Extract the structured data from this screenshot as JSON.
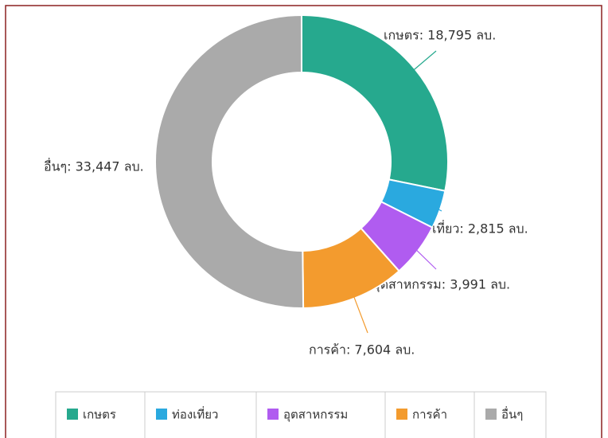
{
  "chart_data": {
    "type": "donut",
    "categories": [
      "เกษตร",
      "ท่องเที่ยว",
      "อุตสาหกรรม",
      "การค้า",
      "อื่นๆ"
    ],
    "values": [
      18795,
      2815,
      3991,
      7604,
      33447
    ],
    "value_labels": [
      "เกษตร: 18,795 ลบ.",
      "ท่องเที่ยว: 2,815 ลบ.",
      "อุตสาหกรรม: 3,991 ลบ.",
      "การค้า: 7,604 ลบ.",
      "อื่นๆ: 33,447 ลบ."
    ],
    "colors": [
      "#26a98e",
      "#2aa9df",
      "#b05cf0",
      "#f39b2e",
      "#aaaaaa"
    ],
    "legend": "bottom"
  }
}
